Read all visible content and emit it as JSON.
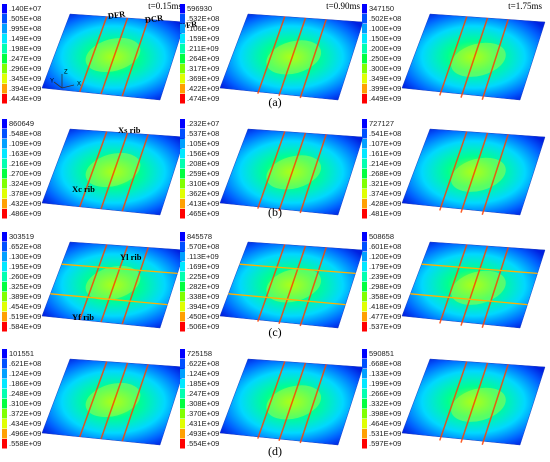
{
  "rows": [
    {
      "label": "(a)",
      "panels": [
        {
          "time": "t=0.15ms",
          "legend": [
            ".140E+07",
            ".505E+08",
            ".995E+08",
            ".149E+09",
            ".198E+09",
            ".247E+09",
            ".296E+09",
            ".345E+09",
            ".394E+09",
            ".443E+09"
          ],
          "annotations": [
            "DFR",
            "DCR",
            "DFR"
          ],
          "axes": [
            "Z",
            "Y",
            "X"
          ]
        },
        {
          "time": "t=0.90ms",
          "legend": [
            "596930",
            ".532E+08",
            ".106E+09",
            ".159E+09",
            ".211E+09",
            ".264E+09",
            ".317E+09",
            ".369E+09",
            ".422E+09",
            ".474E+09"
          ]
        },
        {
          "time": "t=1.75ms",
          "legend": [
            "347150",
            ".502E+08",
            ".100E+09",
            ".150E+09",
            ".200E+09",
            ".250E+09",
            ".300E+09",
            ".349E+09",
            ".399E+09",
            ".449E+09"
          ]
        }
      ]
    },
    {
      "label": "(b)",
      "panels": [
        {
          "legend": [
            "860649",
            ".548E+08",
            ".109E+09",
            ".163E+09",
            ".216E+09",
            ".270E+09",
            ".324E+09",
            ".378E+09",
            ".432E+09",
            ".486E+09"
          ],
          "annotations": [
            "Xs rib",
            "Xc rib"
          ]
        },
        {
          "legend": [
            ".232E+07",
            ".537E+08",
            ".105E+09",
            ".156E+09",
            ".208E+09",
            ".259E+09",
            ".310E+09",
            ".362E+09",
            ".413E+09",
            ".465E+09"
          ]
        },
        {
          "legend": [
            "727127",
            ".541E+08",
            ".107E+09",
            ".161E+09",
            ".214E+09",
            ".268E+09",
            ".321E+09",
            ".374E+09",
            ".428E+09",
            ".481E+09"
          ]
        }
      ]
    },
    {
      "label": "(c)",
      "panels": [
        {
          "legend": [
            "303519",
            ".652E+08",
            ".130E+09",
            ".195E+09",
            ".260E+09",
            ".325E+09",
            ".389E+09",
            ".454E+09",
            ".519E+09",
            ".584E+09"
          ],
          "annotations": [
            "Yl rib",
            "Yf rib"
          ]
        },
        {
          "legend": [
            "845578",
            ".570E+08",
            ".113E+09",
            ".169E+09",
            ".225E+09",
            ".282E+09",
            ".338E+09",
            ".394E+09",
            ".450E+09",
            ".506E+09"
          ]
        },
        {
          "legend": [
            "508658",
            ".601E+08",
            ".120E+09",
            ".179E+09",
            ".239E+09",
            ".298E+09",
            ".358E+09",
            ".418E+09",
            ".477E+09",
            ".537E+09"
          ]
        }
      ]
    },
    {
      "label": "(d)",
      "panels": [
        {
          "legend": [
            "101551",
            ".621E+08",
            ".124E+09",
            ".186E+09",
            ".248E+09",
            ".310E+09",
            ".372E+09",
            ".434E+09",
            ".496E+09",
            ".558E+09"
          ]
        },
        {
          "legend": [
            "725158",
            ".622E+08",
            ".124E+09",
            ".185E+09",
            ".247E+09",
            ".308E+09",
            ".370E+09",
            ".431E+09",
            ".493E+09",
            ".554E+09"
          ]
        },
        {
          "legend": [
            "590851",
            ".668E+08",
            ".133E+09",
            ".199E+09",
            ".266E+09",
            ".332E+09",
            ".398E+09",
            ".464E+09",
            ".531E+09",
            ".597E+09"
          ]
        }
      ]
    }
  ]
}
